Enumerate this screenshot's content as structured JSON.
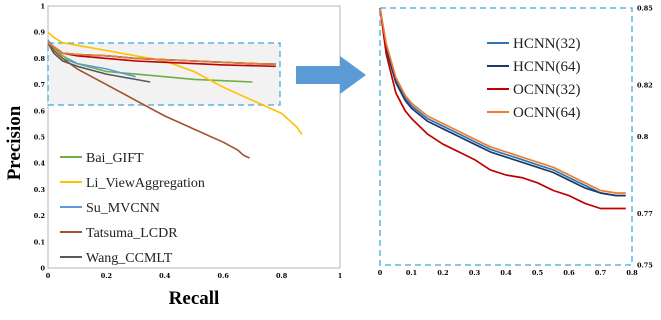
{
  "chart_data": [
    {
      "type": "line",
      "xlabel": "Recall",
      "ylabel": "Precision",
      "xlim": [
        0,
        1
      ],
      "ylim": [
        0,
        1
      ],
      "x_ticks": [
        "0",
        "0.2",
        "0.4",
        "0.6",
        "0.8",
        "1"
      ],
      "y_ticks": [
        "0",
        "0.1",
        "0.2",
        "0.3",
        "0.4",
        "0.5",
        "0.6",
        "0.7",
        "0.8",
        "0.9",
        "1"
      ],
      "grid": false,
      "legend_position": "bottom-left",
      "series": [
        {
          "name": "Bai_GIFT",
          "color": "#70ad47",
          "points": [
            [
              0,
              0.87
            ],
            [
              0.02,
              0.84
            ],
            [
              0.05,
              0.81
            ],
            [
              0.1,
              0.78
            ],
            [
              0.2,
              0.75
            ],
            [
              0.3,
              0.74
            ],
            [
              0.4,
              0.73
            ],
            [
              0.5,
              0.72
            ],
            [
              0.6,
              0.715
            ],
            [
              0.7,
              0.71
            ]
          ]
        },
        {
          "name": "Li_ViewAggregation",
          "color": "#ffc000",
          "points": [
            [
              0,
              0.9
            ],
            [
              0.02,
              0.88
            ],
            [
              0.05,
              0.86
            ],
            [
              0.1,
              0.85
            ],
            [
              0.2,
              0.83
            ],
            [
              0.3,
              0.81
            ],
            [
              0.4,
              0.79
            ],
            [
              0.5,
              0.75
            ],
            [
              0.6,
              0.69
            ],
            [
              0.7,
              0.64
            ],
            [
              0.8,
              0.59
            ],
            [
              0.85,
              0.54
            ],
            [
              0.87,
              0.51
            ]
          ]
        },
        {
          "name": "Su_MVCNN",
          "color": "#5b9bd5",
          "points": [
            [
              0,
              0.87
            ],
            [
              0.02,
              0.83
            ],
            [
              0.05,
              0.8
            ],
            [
              0.1,
              0.78
            ],
            [
              0.2,
              0.76
            ],
            [
              0.3,
              0.73
            ]
          ]
        },
        {
          "name": "Tatsuma_LCDR",
          "color": "#a0522d",
          "points": [
            [
              0,
              0.86
            ],
            [
              0.02,
              0.83
            ],
            [
              0.05,
              0.8
            ],
            [
              0.1,
              0.76
            ],
            [
              0.2,
              0.7
            ],
            [
              0.3,
              0.64
            ],
            [
              0.4,
              0.58
            ],
            [
              0.5,
              0.53
            ],
            [
              0.6,
              0.48
            ],
            [
              0.65,
              0.45
            ],
            [
              0.67,
              0.43
            ],
            [
              0.69,
              0.42
            ]
          ]
        },
        {
          "name": "Wang_CCMLT",
          "color": "#595959",
          "points": [
            [
              0,
              0.86
            ],
            [
              0.02,
              0.82
            ],
            [
              0.05,
              0.79
            ],
            [
              0.1,
              0.77
            ],
            [
              0.2,
              0.74
            ],
            [
              0.3,
              0.72
            ],
            [
              0.35,
              0.71
            ]
          ]
        },
        {
          "name": "HCNN(32)",
          "color": "#2e75b6",
          "points": [
            [
              0,
              0.86
            ],
            [
              0.05,
              0.82
            ],
            [
              0.1,
              0.815
            ],
            [
              0.2,
              0.81
            ],
            [
              0.3,
              0.8
            ],
            [
              0.4,
              0.795
            ],
            [
              0.5,
              0.79
            ],
            [
              0.6,
              0.785
            ],
            [
              0.7,
              0.78
            ],
            [
              0.78,
              0.778
            ]
          ]
        },
        {
          "name": "HCNN(64)",
          "color": "#1f3864",
          "points": [
            [
              0,
              0.86
            ],
            [
              0.05,
              0.82
            ],
            [
              0.1,
              0.815
            ],
            [
              0.2,
              0.81
            ],
            [
              0.3,
              0.8
            ],
            [
              0.4,
              0.795
            ],
            [
              0.5,
              0.79
            ],
            [
              0.6,
              0.785
            ],
            [
              0.7,
              0.78
            ],
            [
              0.78,
              0.778
            ]
          ]
        },
        {
          "name": "OCNN(32)",
          "color": "#c00000",
          "points": [
            [
              0,
              0.86
            ],
            [
              0.05,
              0.82
            ],
            [
              0.1,
              0.81
            ],
            [
              0.2,
              0.8
            ],
            [
              0.3,
              0.79
            ],
            [
              0.4,
              0.785
            ],
            [
              0.5,
              0.78
            ],
            [
              0.6,
              0.775
            ],
            [
              0.7,
              0.772
            ],
            [
              0.78,
              0.77
            ]
          ]
        },
        {
          "name": "OCNN(64)",
          "color": "#ed7d31",
          "points": [
            [
              0,
              0.86
            ],
            [
              0.05,
              0.82
            ],
            [
              0.1,
              0.815
            ],
            [
              0.2,
              0.81
            ],
            [
              0.3,
              0.8
            ],
            [
              0.4,
              0.795
            ],
            [
              0.5,
              0.79
            ],
            [
              0.6,
              0.785
            ],
            [
              0.7,
              0.78
            ],
            [
              0.78,
              0.778
            ]
          ]
        }
      ]
    },
    {
      "type": "line",
      "xlabel": "",
      "ylabel": "",
      "xlim": [
        0,
        0.8
      ],
      "ylim": [
        0.75,
        0.85
      ],
      "x_ticks": [
        "0",
        "0.1",
        "0.2",
        "0.3",
        "0.4",
        "0.5",
        "0.6",
        "0.7",
        "0.8"
      ],
      "y_ticks": [
        "0.75",
        "0.77",
        "0.8",
        "0.82",
        "0.85"
      ],
      "grid": false,
      "legend_position": "top-right",
      "series": [
        {
          "name": "HCNN(32)",
          "color": "#2e75b6",
          "points": [
            [
              0,
              0.85
            ],
            [
              0.02,
              0.835
            ],
            [
              0.05,
              0.822
            ],
            [
              0.08,
              0.815
            ],
            [
              0.1,
              0.812
            ],
            [
              0.15,
              0.807
            ],
            [
              0.2,
              0.804
            ],
            [
              0.25,
              0.801
            ],
            [
              0.3,
              0.798
            ],
            [
              0.35,
              0.795
            ],
            [
              0.4,
              0.793
            ],
            [
              0.45,
              0.791
            ],
            [
              0.5,
              0.789
            ],
            [
              0.55,
              0.787
            ],
            [
              0.6,
              0.784
            ],
            [
              0.65,
              0.781
            ],
            [
              0.7,
              0.778
            ],
            [
              0.75,
              0.777
            ],
            [
              0.78,
              0.777
            ]
          ]
        },
        {
          "name": "HCNN(64)",
          "color": "#1f3864",
          "points": [
            [
              0,
              0.85
            ],
            [
              0.02,
              0.834
            ],
            [
              0.05,
              0.821
            ],
            [
              0.08,
              0.814
            ],
            [
              0.1,
              0.811
            ],
            [
              0.15,
              0.806
            ],
            [
              0.2,
              0.803
            ],
            [
              0.25,
              0.8
            ],
            [
              0.3,
              0.797
            ],
            [
              0.35,
              0.794
            ],
            [
              0.4,
              0.792
            ],
            [
              0.45,
              0.79
            ],
            [
              0.5,
              0.788
            ],
            [
              0.55,
              0.786
            ],
            [
              0.6,
              0.783
            ],
            [
              0.65,
              0.78
            ],
            [
              0.7,
              0.778
            ],
            [
              0.75,
              0.777
            ],
            [
              0.78,
              0.777
            ]
          ]
        },
        {
          "name": "OCNN(32)",
          "color": "#c00000",
          "points": [
            [
              0,
              0.85
            ],
            [
              0.02,
              0.832
            ],
            [
              0.05,
              0.817
            ],
            [
              0.08,
              0.81
            ],
            [
              0.1,
              0.807
            ],
            [
              0.15,
              0.801
            ],
            [
              0.2,
              0.797
            ],
            [
              0.25,
              0.794
            ],
            [
              0.3,
              0.791
            ],
            [
              0.35,
              0.787
            ],
            [
              0.4,
              0.785
            ],
            [
              0.45,
              0.784
            ],
            [
              0.5,
              0.782
            ],
            [
              0.55,
              0.779
            ],
            [
              0.6,
              0.777
            ],
            [
              0.65,
              0.774
            ],
            [
              0.7,
              0.772
            ],
            [
              0.75,
              0.772
            ],
            [
              0.78,
              0.772
            ]
          ]
        },
        {
          "name": "OCNN(64)",
          "color": "#ed7d31",
          "points": [
            [
              0,
              0.85
            ],
            [
              0.02,
              0.836
            ],
            [
              0.05,
              0.823
            ],
            [
              0.08,
              0.816
            ],
            [
              0.1,
              0.813
            ],
            [
              0.15,
              0.808
            ],
            [
              0.2,
              0.805
            ],
            [
              0.25,
              0.802
            ],
            [
              0.3,
              0.799
            ],
            [
              0.35,
              0.796
            ],
            [
              0.4,
              0.794
            ],
            [
              0.45,
              0.792
            ],
            [
              0.5,
              0.79
            ],
            [
              0.55,
              0.788
            ],
            [
              0.6,
              0.785
            ],
            [
              0.65,
              0.782
            ],
            [
              0.7,
              0.779
            ],
            [
              0.75,
              0.778
            ],
            [
              0.78,
              0.778
            ]
          ]
        }
      ]
    }
  ]
}
